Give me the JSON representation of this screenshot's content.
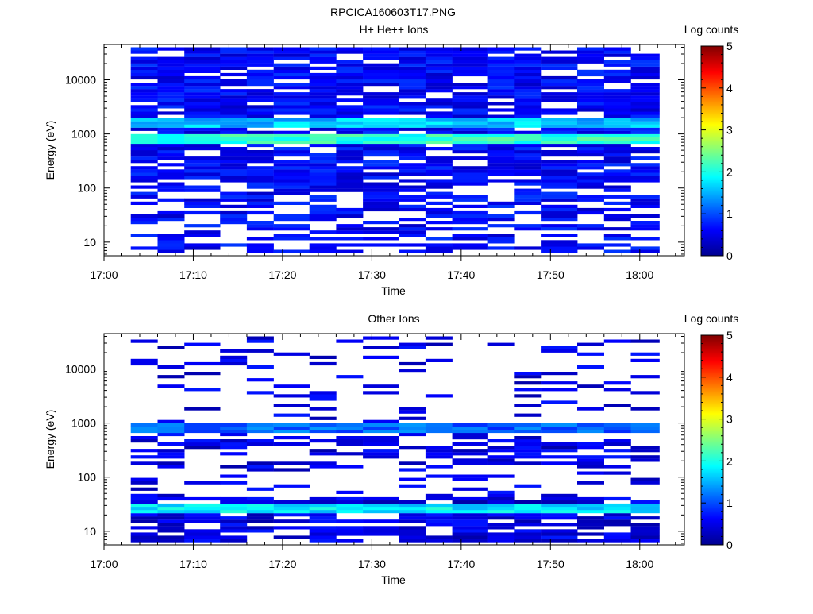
{
  "figure_title": "RPCICA160603T17.PNG",
  "chart_data": [
    {
      "type": "heatmap",
      "title": "H+ He++ Ions",
      "xlabel": "Time",
      "ylabel": "Energy (eV)",
      "x_ticks": [
        "17:00",
        "17:10",
        "17:20",
        "17:30",
        "17:40",
        "17:50",
        "18:00"
      ],
      "x_range": [
        "17:00",
        "18:05"
      ],
      "y_scale": "log",
      "y_ticks": [
        "10",
        "100",
        "1000",
        "10000"
      ],
      "y_range": [
        5.6,
        45000
      ],
      "time_columns": [
        "17:03",
        "17:06",
        "17:09",
        "17:13",
        "17:16",
        "17:19",
        "17:23",
        "17:26",
        "17:29",
        "17:33",
        "17:36",
        "17:39",
        "17:43",
        "17:46",
        "17:49",
        "17:53",
        "17:56",
        "17:59"
      ],
      "colorbar": {
        "label": "Log counts",
        "ticks": [
          "0",
          "1",
          "2",
          "3",
          "4",
          "5"
        ],
        "range": [
          0,
          5
        ],
        "colormap": "jet"
      },
      "bands": [
        {
          "energy_eV": 800,
          "log_counts": 2.1
        },
        {
          "energy_eV": 1550,
          "log_counts": 1.6
        }
      ]
    },
    {
      "type": "heatmap",
      "title": "Other Ions",
      "xlabel": "Time",
      "ylabel": "Energy (eV)",
      "x_ticks": [
        "17:00",
        "17:10",
        "17:20",
        "17:30",
        "17:40",
        "17:50",
        "18:00"
      ],
      "x_range": [
        "17:00",
        "18:05"
      ],
      "y_scale": "log",
      "y_ticks": [
        "10",
        "100",
        "1000",
        "10000"
      ],
      "y_range": [
        5.6,
        45000
      ],
      "time_columns": [
        "17:03",
        "17:06",
        "17:09",
        "17:13",
        "17:16",
        "17:19",
        "17:23",
        "17:26",
        "17:29",
        "17:33",
        "17:36",
        "17:39",
        "17:43",
        "17:46",
        "17:49",
        "17:53",
        "17:56",
        "17:59"
      ],
      "colorbar": {
        "label": "Log counts",
        "ticks": [
          "0",
          "1",
          "2",
          "3",
          "4",
          "5"
        ],
        "range": [
          0,
          5
        ],
        "colormap": "jet"
      },
      "bands": [
        {
          "energy_eV": 28,
          "log_counts": 1.8
        },
        {
          "energy_eV": 780,
          "log_counts": 1.1
        }
      ]
    }
  ]
}
